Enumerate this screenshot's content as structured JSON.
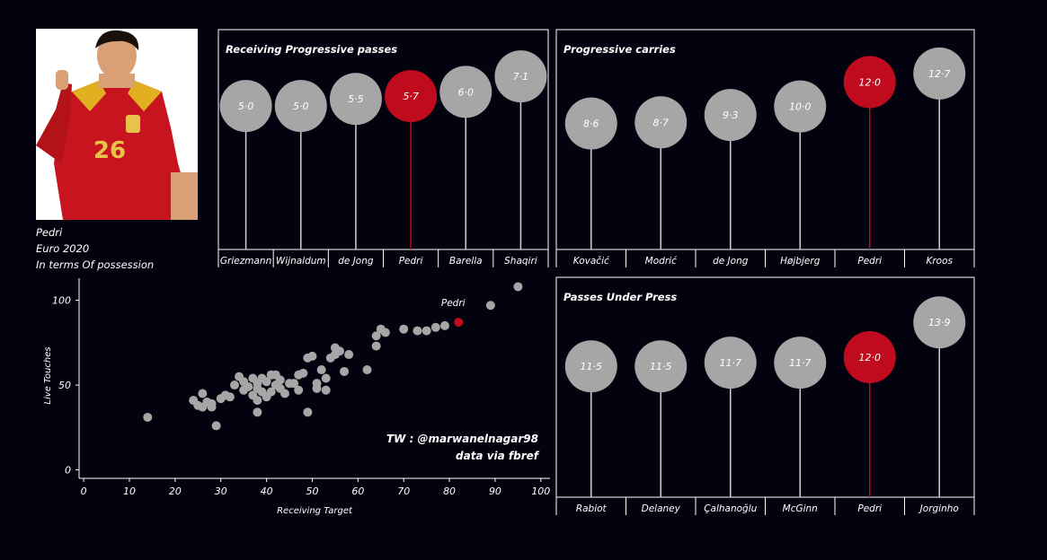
{
  "player": {
    "name": "Pedri",
    "competition": "Euro 2020",
    "context": "In terms Of possession",
    "shirt_number": "26"
  },
  "credits": {
    "handle": "TW : @marwanelnagar98",
    "source": "data via fbref"
  },
  "colors": {
    "background": "#03030f",
    "highlight": "#c00a1e",
    "neutral": "#a6a6a6",
    "text": "#ffffff"
  },
  "chart_data": [
    {
      "type": "lollipop",
      "title": "Receiving Progressive passes",
      "categories": [
        "Griezmann",
        "Wijnaldum",
        "de Jong",
        "Pedri",
        "Barella",
        "Shaqiri"
      ],
      "values": [
        5.0,
        5.0,
        5.5,
        5.7,
        6.0,
        7.1
      ],
      "labels": [
        "5·0",
        "5·0",
        "5·5",
        "5·7",
        "6·0",
        "7·1"
      ],
      "highlight": "Pedri"
    },
    {
      "type": "lollipop",
      "title": "Progressive carries",
      "categories": [
        "Kovačić",
        "Modrić",
        "de Jong",
        "Højbjerg",
        "Pedri",
        "Kroos"
      ],
      "values": [
        8.6,
        8.7,
        9.3,
        10.0,
        12.0,
        12.7
      ],
      "labels": [
        "8·6",
        "8·7",
        "9·3",
        "10·0",
        "12·0",
        "12·7"
      ],
      "highlight": "Pedri"
    },
    {
      "type": "lollipop",
      "title": "Passes Under Press",
      "categories": [
        "Rabiot",
        "Delaney",
        "Çalhanoğlu",
        "McGinn",
        "Pedri",
        "Jorginho"
      ],
      "values": [
        11.5,
        11.5,
        11.7,
        11.7,
        12.0,
        13.9
      ],
      "labels": [
        "11·5",
        "11·5",
        "11·7",
        "11·7",
        "12·0",
        "13·9"
      ],
      "highlight": "Pedri"
    },
    {
      "type": "scatter",
      "xlabel": "Receiving Target",
      "ylabel": "Live Touches",
      "xlim": [
        -1,
        102
      ],
      "ylim": [
        -5,
        113
      ],
      "xticks": [
        0,
        10,
        20,
        30,
        40,
        50,
        60,
        70,
        80,
        90,
        100
      ],
      "yticks": [
        0,
        50,
        100
      ],
      "highlight_label": "Pedri",
      "highlight_point": [
        82,
        87
      ],
      "points": [
        [
          14,
          31
        ],
        [
          24,
          41
        ],
        [
          25,
          38
        ],
        [
          26,
          37
        ],
        [
          26,
          45
        ],
        [
          27,
          40
        ],
        [
          28,
          37
        ],
        [
          28,
          39
        ],
        [
          29,
          26
        ],
        [
          30,
          42
        ],
        [
          31,
          44
        ],
        [
          32,
          43
        ],
        [
          33,
          50
        ],
        [
          34,
          55
        ],
        [
          35,
          47
        ],
        [
          35,
          52
        ],
        [
          36,
          49
        ],
        [
          37,
          44
        ],
        [
          37,
          54
        ],
        [
          38,
          48
        ],
        [
          38,
          51
        ],
        [
          38,
          41
        ],
        [
          38,
          34
        ],
        [
          39,
          54
        ],
        [
          39,
          46
        ],
        [
          40,
          52
        ],
        [
          40,
          43
        ],
        [
          41,
          56
        ],
        [
          41,
          46
        ],
        [
          42,
          50
        ],
        [
          42,
          56
        ],
        [
          43,
          53
        ],
        [
          43,
          48
        ],
        [
          44,
          45
        ],
        [
          45,
          51
        ],
        [
          46,
          51
        ],
        [
          47,
          47
        ],
        [
          47,
          56
        ],
        [
          48,
          57
        ],
        [
          49,
          66
        ],
        [
          50,
          67
        ],
        [
          51,
          48
        ],
        [
          51,
          51
        ],
        [
          52,
          59
        ],
        [
          53,
          47
        ],
        [
          53,
          54
        ],
        [
          54,
          66
        ],
        [
          55,
          68
        ],
        [
          55,
          72
        ],
        [
          56,
          70
        ],
        [
          57,
          58
        ],
        [
          58,
          68
        ],
        [
          62,
          59
        ],
        [
          64,
          73
        ],
        [
          64,
          79
        ],
        [
          65,
          83
        ],
        [
          66,
          81
        ],
        [
          70,
          83
        ],
        [
          73,
          82
        ],
        [
          75,
          82
        ],
        [
          77,
          84
        ],
        [
          79,
          85
        ],
        [
          89,
          97
        ],
        [
          95,
          108
        ],
        [
          49,
          34
        ]
      ]
    }
  ]
}
